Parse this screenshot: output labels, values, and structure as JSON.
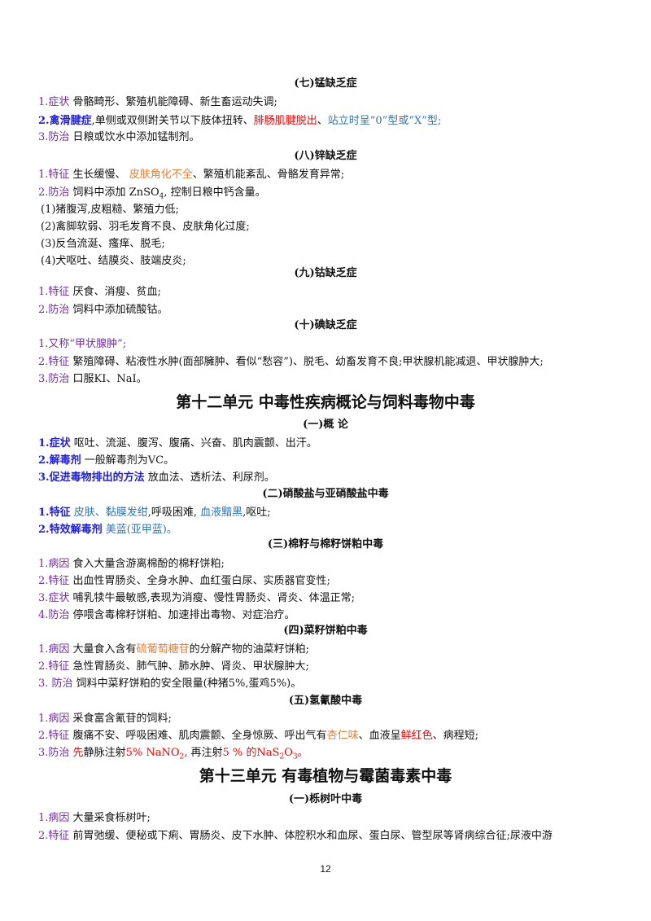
{
  "s7": {
    "heading": "(七)锰缺乏症",
    "l1": {
      "num": "1.",
      "label": "症状",
      "text": " 骨骼畸形、繁殖机能障碍、新生畜运动失调;"
    },
    "l2": {
      "label": "2.禽滑腱症",
      "t1": ",单侧或双侧跗关节以下肢体扭转、",
      "red": "腓肠肌腱脱出",
      "sep": "、",
      "blue": "站立时呈“0”型或“X”型;"
    },
    "l3": {
      "num": "3.",
      "label": "防治",
      "text": " 日粮或饮水中添加锰制剂。"
    }
  },
  "s8": {
    "heading": "(八)锌缺乏症",
    "l1": {
      "num": "1.",
      "label": "特征",
      "t1": " 生长缓慢、 ",
      "orange": "皮肤角化不全",
      "t2": "、繁殖机能紊乱、骨骼发育异常;"
    },
    "l2": {
      "num": "2.",
      "label": "防治",
      "t1": " 饲料中添加 ZnSO",
      "t2": " 控制日粮中钙含量。"
    },
    "items": [
      "(1)猪腹泻,皮粗糙、繁殖力低;",
      "(2)禽脚软弱、羽毛发育不良、皮肤角化过度;",
      "(3)反刍流涎、瘙痒、脱毛;",
      "(4)犬呕吐、结膜炎、肢端皮炎;"
    ]
  },
  "s9": {
    "heading": "(九)钴缺乏症",
    "l1": {
      "num": "1.",
      "label": "特征",
      "text": " 厌食、消瘦、贫血;"
    },
    "l2": {
      "num": "2.",
      "label": "防治",
      "text": " 饲料中添加硫酸钴。"
    }
  },
  "s10": {
    "heading": "(十)碘缺乏症",
    "l1": {
      "num": "1.",
      "text": "又称“甲状腺肿”;"
    },
    "l2": {
      "num": "2.",
      "label": "特征",
      "text": " 繁殖障碍、粘液性水肿(面部臃肿、看似“愁容”)、脱毛、幼畜发育不良;甲状腺机能减退、甲状腺肿大;"
    },
    "l3": {
      "num": "3.",
      "label": "防治",
      "text": " 口服KI、NaI。"
    }
  },
  "unit12": "第十二单元 中毒性疾病概论与饲料毒物中毒",
  "u12s1": {
    "heading": "(一)概 论",
    "l1": {
      "label": "1.症状",
      "text": " 呕吐、流涎、腹泻、腹痛、兴奋、肌肉震颤、出汗。"
    },
    "l2": {
      "label": "2.解毒剂",
      "text": " 一般解毒剂为VC。"
    },
    "l3": {
      "label": "3.促进毒物排出的方法",
      "text": " 放血法、透析法、利尿剂。"
    }
  },
  "u12s2": {
    "heading": "(二)硝酸盐与亚硝酸盐中毒",
    "l1": {
      "label": "1.特征",
      "blue1": " 皮肤、黏膜发绀",
      "t1": ",呼吸困难, ",
      "blue2": " 血液黯黑",
      "t2": ",呕吐;"
    },
    "l2": {
      "label": "2.特效解毒剂",
      "blue": " 美蓝(亚甲蓝)。"
    }
  },
  "u12s3": {
    "heading": "(三)棉籽与棉籽饼粕中毒",
    "l1": {
      "num": "1.",
      "label": "病因",
      "text": " 食入大量含游离棉酚的棉籽饼粕;"
    },
    "l2": {
      "num": "2.",
      "label": "特征",
      "text": " 出血性胃肠炎、全身水肿、血红蛋白尿、实质器官变性;"
    },
    "l3": {
      "num": "3.",
      "label": "症状",
      "text": " 哺乳犊牛最敏感,表现为消瘦、慢性胃肠炎、肾炎、体温正常;"
    },
    "l4": {
      "num": "4.",
      "label": "防治",
      "text": " 停喂含毒棉籽饼粕、加速排出毒物、对症治疗。"
    }
  },
  "u12s4": {
    "heading": "(四)菜籽饼粕中毒",
    "l1": {
      "num": "1.",
      "label": "病因",
      "t1": " 大量食入含有",
      "orange": "硫葡萄糖苷",
      "t2": "的分解产物的油菜籽饼粕;"
    },
    "l2": {
      "num": "2.",
      "label": "特征",
      "text": " 急性胃肠炎、肺气肿、肺水肿、肾炎、甲状腺肿大;"
    },
    "l3": {
      "num": "3.",
      "label": " 防治",
      "text": " 饲料中菜籽饼粕的安全限量(种猪5%,蛋鸡5%)。"
    }
  },
  "u12s5": {
    "heading": "(五)氢氰酸中毒",
    "l1": {
      "num": "1.",
      "label": "病因",
      "text": " 采食富含氰苷的饲料;"
    },
    "l2": {
      "num": "2.",
      "label": "特征",
      "t1": " 腹痛不安、呼吸困难、肌肉震颤、全身惊厥、呼出气有",
      "orange": "杏仁味",
      "t2": "、血液呈",
      "red": "鲜红色",
      "t3": "、病程短;"
    },
    "l3": {
      "num": "3.",
      "label": "防治",
      "r1": " 先",
      "t1": "静脉注射",
      "r2": "5% NaNO",
      "r3": ", ",
      "t2": "再注射",
      "r4": "5 % 的NaS",
      "r5": "。"
    }
  },
  "unit13": "第十三单元 有毒植物与霉菌毒素中毒",
  "u13s1": {
    "heading": "(一)栎树叶中毒",
    "l1": {
      "num": "1.",
      "label": "病因",
      "text": " 大量采食栎树叶;"
    },
    "l2": {
      "num": "2.",
      "label": "特征",
      "text": " 前胃弛缓、便秘或下痢、胃肠炎、皮下水肿、体腔积水和血尿、蛋白尿、管型尿等肾病综合征;尿液中游"
    }
  },
  "page_number": "12",
  "colors": {
    "label": "#7030a0",
    "blue": "#2e75b6",
    "red": "#ff0000",
    "orange": "#ed7d31",
    "bold_blue": "#1f1fd6"
  }
}
